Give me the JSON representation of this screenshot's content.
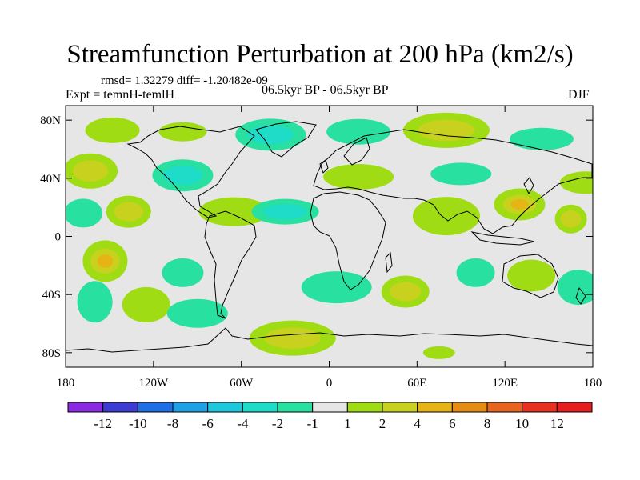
{
  "title": "Streamfunction Perturbation at 200 hPa (km2/s)",
  "stats": "rmsd= 1.32279 diff= -1.20482e-09",
  "experiment": "Expt = temnH-temlH",
  "period": "06.5kyr BP - 06.5kyr BP",
  "season": "DJF",
  "y_ticks": [
    "80N",
    "40N",
    "0",
    "40S",
    "80S"
  ],
  "x_ticks": [
    "180",
    "120W",
    "60W",
    "0",
    "60E",
    "120E",
    "180"
  ],
  "colorbar": {
    "labels": [
      "-12",
      "-10",
      "-8",
      "-6",
      "-4",
      "-2",
      "-1",
      "1",
      "2",
      "4",
      "6",
      "8",
      "10",
      "12"
    ],
    "colors": [
      "#8a2be2",
      "#3c3cd2",
      "#1e6ee6",
      "#1ea0e6",
      "#1ec8dc",
      "#1edcc8",
      "#28e0a0",
      "#e6e6e6",
      "#a0dc14",
      "#c8d21e",
      "#e6b414",
      "#e68c14",
      "#e6641e",
      "#e6321e",
      "#e61e1e"
    ]
  },
  "chart_data": {
    "type": "heatmap",
    "title": "Streamfunction Perturbation at 200 hPa (km2/s)",
    "units": "km2/s",
    "lon_range": [
      -180,
      180
    ],
    "lat_range": [
      -90,
      90
    ],
    "levels": [
      -12,
      -10,
      -8,
      -6,
      -4,
      -2,
      -1,
      1,
      2,
      4,
      6,
      8,
      10,
      12
    ],
    "anomalies": [
      {
        "lon": -163,
        "lat": 45,
        "value": 4
      },
      {
        "lon": -148,
        "lat": 73,
        "value": 2
      },
      {
        "lon": -100,
        "lat": 42,
        "value": -4
      },
      {
        "lon": -100,
        "lat": 72,
        "value": 2
      },
      {
        "lon": -65,
        "lat": 17,
        "value": 2
      },
      {
        "lon": -30,
        "lat": 17,
        "value": -4
      },
      {
        "lon": -168,
        "lat": 16,
        "value": -2
      },
      {
        "lon": -137,
        "lat": 17,
        "value": 4
      },
      {
        "lon": -40,
        "lat": 70,
        "value": -4
      },
      {
        "lon": 20,
        "lat": 72,
        "value": -2
      },
      {
        "lon": 80,
        "lat": 73,
        "value": 4
      },
      {
        "lon": 145,
        "lat": 67,
        "value": -2
      },
      {
        "lon": 20,
        "lat": 41,
        "value": 2
      },
      {
        "lon": 90,
        "lat": 43,
        "value": -2
      },
      {
        "lon": 175,
        "lat": 37,
        "value": 2
      },
      {
        "lon": 80,
        "lat": 14,
        "value": 2
      },
      {
        "lon": 130,
        "lat": 22,
        "value": 6
      },
      {
        "lon": 165,
        "lat": 12,
        "value": 4
      },
      {
        "lon": -153,
        "lat": -17,
        "value": 6
      },
      {
        "lon": -160,
        "lat": -45,
        "value": -2
      },
      {
        "lon": -125,
        "lat": -47,
        "value": 2
      },
      {
        "lon": -100,
        "lat": -25,
        "value": -2
      },
      {
        "lon": -90,
        "lat": -53,
        "value": -2
      },
      {
        "lon": -25,
        "lat": -70,
        "value": 4
      },
      {
        "lon": 5,
        "lat": -35,
        "value": -2
      },
      {
        "lon": 52,
        "lat": -38,
        "value": 4
      },
      {
        "lon": 100,
        "lat": -25,
        "value": -2
      },
      {
        "lon": 138,
        "lat": -27,
        "value": 2
      },
      {
        "lon": 170,
        "lat": -35,
        "value": -2
      },
      {
        "lon": 75,
        "lat": -80,
        "value": 2
      }
    ]
  }
}
